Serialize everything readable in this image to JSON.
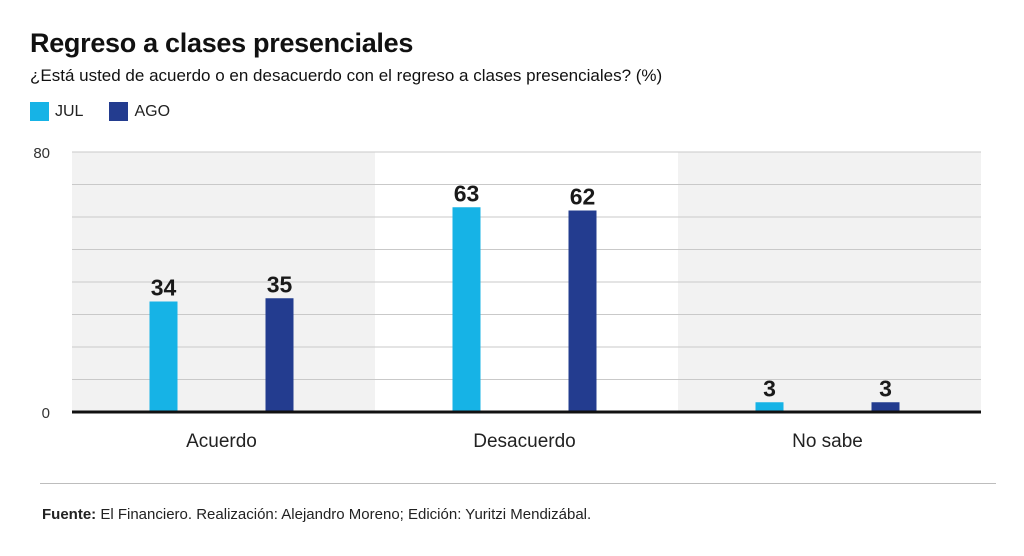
{
  "title": "Regreso a clases presenciales",
  "subtitle": "¿Está usted de acuerdo o en desacuerdo con el regreso a clases presenciales? (%)",
  "legend": [
    {
      "label": "JUL",
      "color": "#16b3e6"
    },
    {
      "label": "AGO",
      "color": "#233c8f"
    }
  ],
  "chart_data": {
    "type": "bar",
    "title": "Regreso a clases presenciales",
    "xlabel": "",
    "ylabel": "%",
    "ylim": [
      0,
      80
    ],
    "y_ticks": [
      0,
      80
    ],
    "grid": true,
    "categories": [
      "Acuerdo",
      "Desacuerdo",
      "No sabe"
    ],
    "series": [
      {
        "name": "JUL",
        "color": "#16b3e6",
        "values": [
          34,
          63,
          3
        ]
      },
      {
        "name": "AGO",
        "color": "#233c8f",
        "values": [
          35,
          62,
          3
        ]
      }
    ]
  },
  "footer": {
    "source_label": "Fuente:",
    "source_text": " El Financiero. Realización: Alejandro Moreno; Edición: Yuritzi Mendizábal."
  }
}
